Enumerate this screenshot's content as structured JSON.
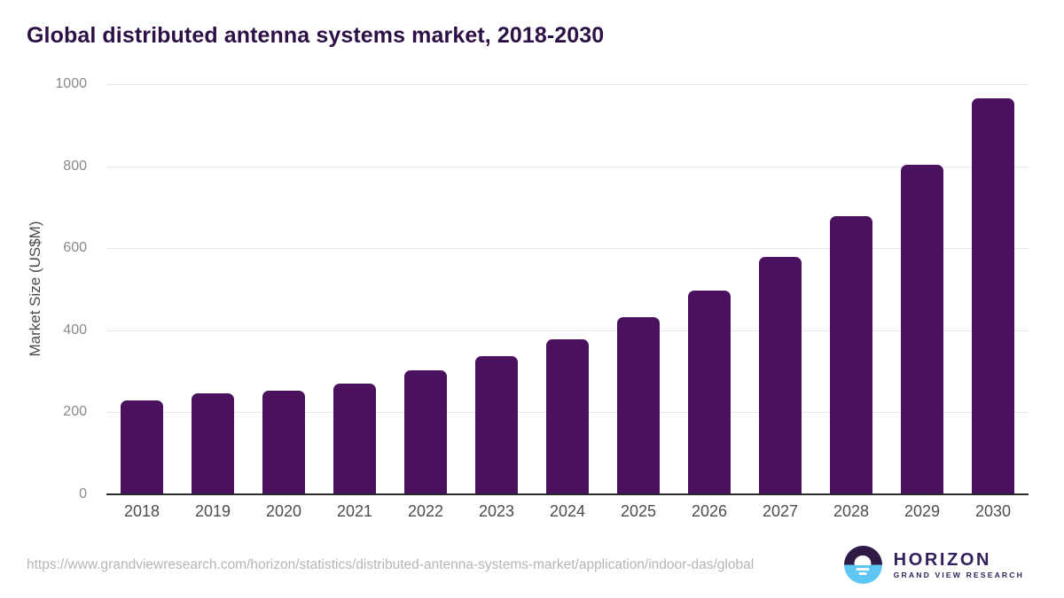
{
  "header": {
    "title": "Global distributed antenna systems market, 2018-2030"
  },
  "chart_data": {
    "type": "bar",
    "title": "Global distributed antenna systems market, 2018-2030",
    "categories": [
      "2018",
      "2019",
      "2020",
      "2021",
      "2022",
      "2023",
      "2024",
      "2025",
      "2026",
      "2027",
      "2028",
      "2029",
      "2030"
    ],
    "values": [
      230,
      246,
      253,
      270,
      303,
      336,
      378,
      433,
      497,
      578,
      678,
      803,
      965
    ],
    "xlabel": "",
    "ylabel": "Market Size (US$M)",
    "ylim": [
      0,
      1000
    ],
    "yticks": [
      0,
      200,
      400,
      600,
      800,
      1000
    ],
    "grid": true,
    "legend": false,
    "bar_color": "#4A125E"
  },
  "footer": {
    "source_url": "https://www.grandviewresearch.com/horizon/statistics/distributed-antenna-systems-market/application/indoor-das/global",
    "brand": {
      "name": "HORIZON",
      "subtitle": "GRAND VIEW RESEARCH",
      "icon": "horizon-sunset-icon"
    }
  },
  "colors": {
    "title_text": "#2D1146",
    "bar": "#4A125E",
    "axis_tick_text": "#8a8a8a",
    "year_text": "#4d4d4d",
    "gridline": "#e9e9e9",
    "baseline": "#2b2b2b",
    "url_text": "#b5b5b5",
    "logo_purple": "#2E1A45",
    "logo_blue": "#5EC6F2"
  }
}
